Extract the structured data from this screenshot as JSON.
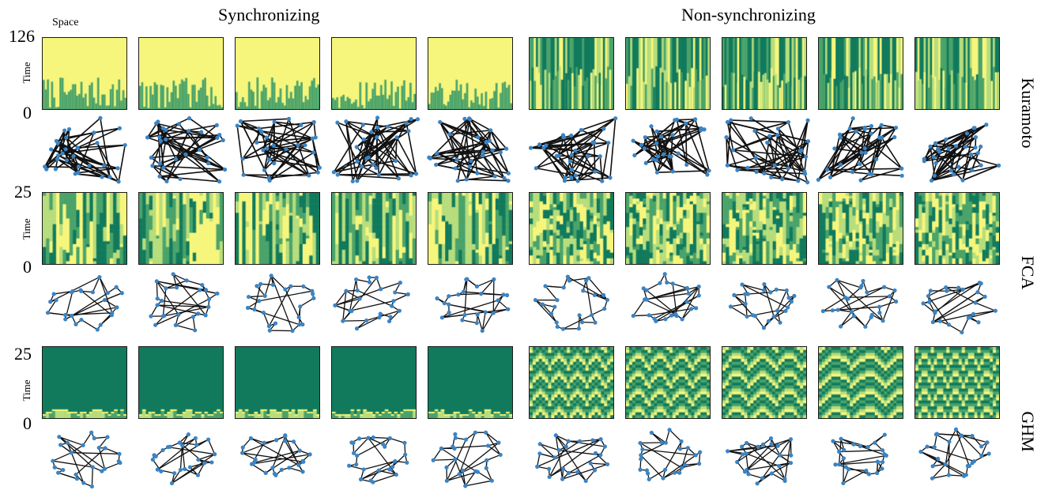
{
  "titles": {
    "sync": "Synchronizing",
    "nonsync": "Non-synchronizing"
  },
  "space_label": "Space",
  "time_label": "Time",
  "rows": [
    {
      "model": "Kuramoto",
      "y_max": "126",
      "y_min": "0"
    },
    {
      "model": "FCA",
      "y_max": "25",
      "y_min": "0"
    },
    {
      "model": "GHM",
      "y_max": "25",
      "y_min": "0"
    }
  ],
  "colors": {
    "dark_green": "#117a5c",
    "mid_green": "#4aa36a",
    "light_green": "#b7dd7c",
    "yellow": "#f6f67c",
    "node": "#3a84c4",
    "edge": "#111111"
  }
}
